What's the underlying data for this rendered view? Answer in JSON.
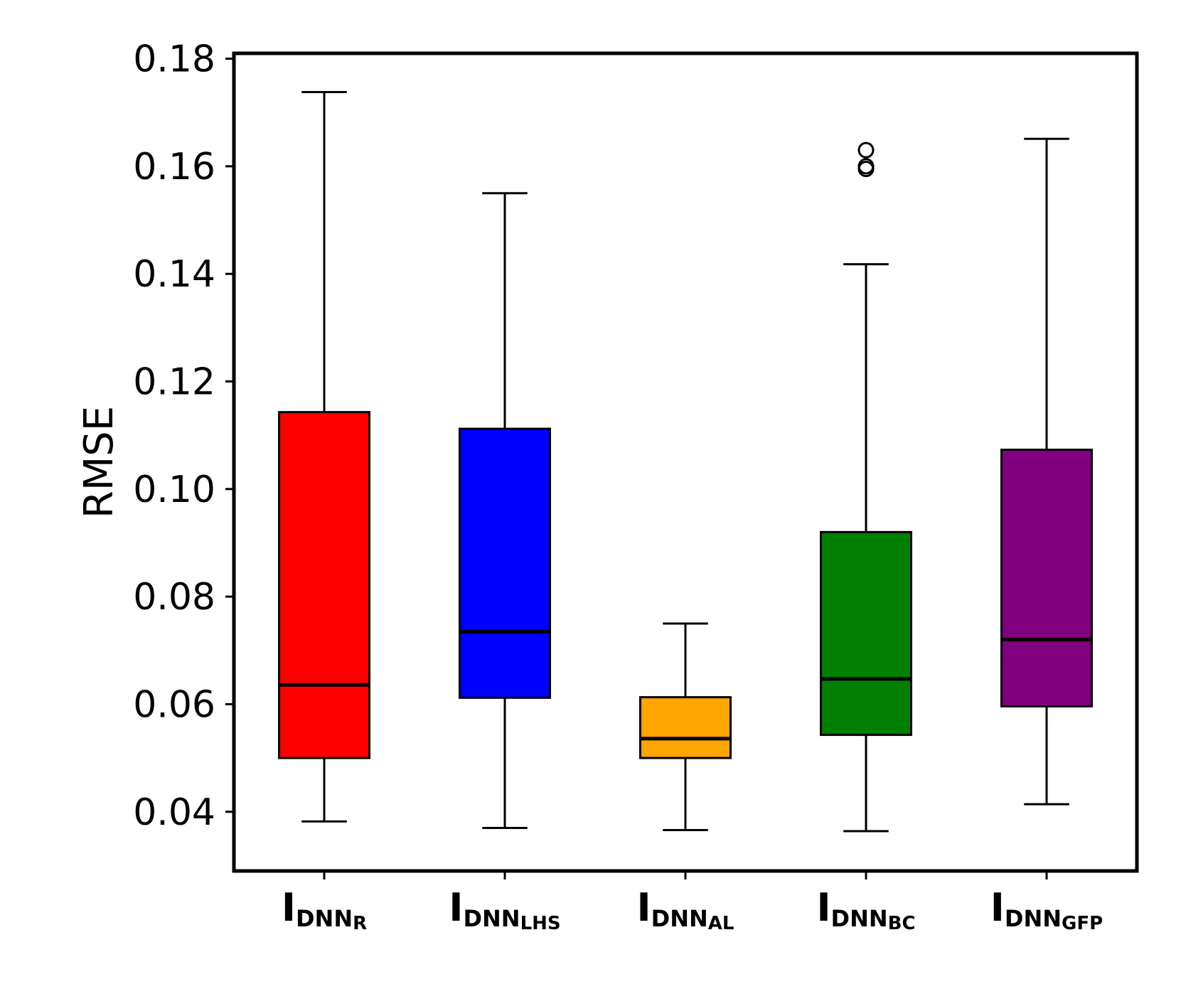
{
  "chart_data": {
    "type": "boxplot",
    "title": "",
    "xlabel": "",
    "ylabel": "RMSE",
    "ylim": [
      0.029,
      0.181
    ],
    "yticks": [
      0.04,
      0.06,
      0.08,
      0.1,
      0.12,
      0.14,
      0.16,
      0.18
    ],
    "ytick_labels": [
      "0.04",
      "0.06",
      "0.08",
      "0.10",
      "0.12",
      "0.14",
      "0.16",
      "0.18"
    ],
    "boxes": [
      {
        "main": "I",
        "label": "DNN",
        "sub": "R",
        "color": "#ff0000",
        "whisker_low": 0.0382,
        "q1": 0.05,
        "median": 0.0636,
        "q3": 0.1143,
        "whisker_high": 0.1738,
        "outliers": []
      },
      {
        "main": "I",
        "label": "DNN",
        "sub": "LHS",
        "color": "#0000ff",
        "whisker_low": 0.037,
        "q1": 0.0612,
        "median": 0.0735,
        "q3": 0.1112,
        "whisker_high": 0.155,
        "outliers": []
      },
      {
        "main": "I",
        "label": "DNN",
        "sub": "AL",
        "color": "#ffa500",
        "whisker_low": 0.0366,
        "q1": 0.05,
        "median": 0.0536,
        "q3": 0.0613,
        "whisker_high": 0.075,
        "outliers": []
      },
      {
        "main": "I",
        "label": "DNN",
        "sub": "BC",
        "color": "#008000",
        "whisker_low": 0.0364,
        "q1": 0.0543,
        "median": 0.0647,
        "q3": 0.092,
        "whisker_high": 0.1418,
        "outliers": [
          0.1595,
          0.16,
          0.163
        ]
      },
      {
        "main": "I",
        "label": "DNN",
        "sub": "GFP",
        "color": "#800080",
        "whisker_low": 0.0414,
        "q1": 0.0596,
        "median": 0.072,
        "q3": 0.1073,
        "whisker_high": 0.1651,
        "outliers": []
      }
    ]
  }
}
